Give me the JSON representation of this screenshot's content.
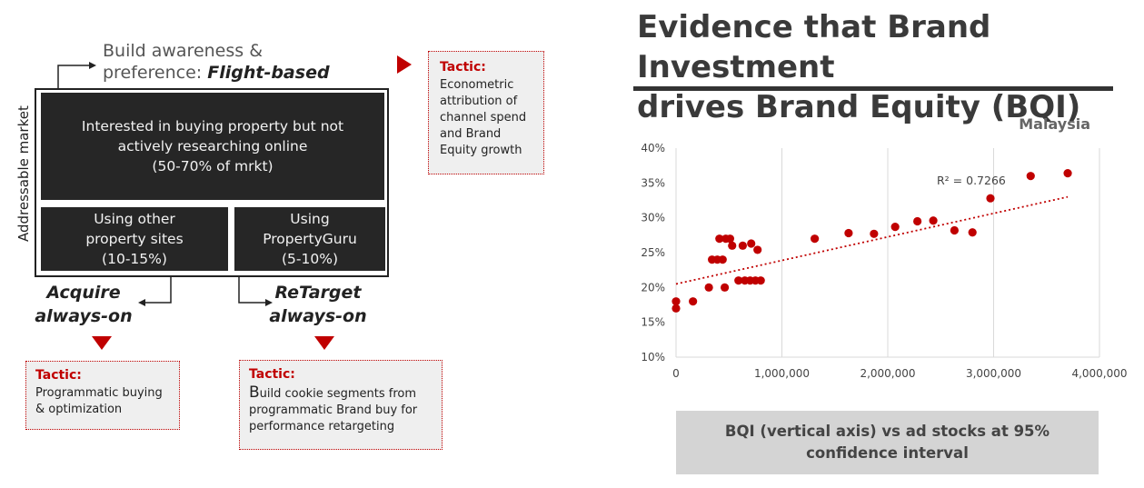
{
  "diagram": {
    "build_line1": "Build awareness &",
    "build_line2_prefix": "preference: ",
    "build_line2_bold": "Flight-based",
    "vertical_label": "Addressable market",
    "main_box": [
      "Interested in buying property but not",
      "actively researching online",
      "(50-70% of mrkt)"
    ],
    "other_box": [
      "Using other",
      "property sites",
      "(10-15%)"
    ],
    "pg_box": [
      "Using",
      "PropertyGuru",
      "(5-10%)"
    ],
    "acquire": [
      "Acquire",
      "always-on"
    ],
    "retarget": [
      "ReTarget",
      "always-on"
    ]
  },
  "tactics": {
    "top": {
      "title": "Tactic:",
      "lines": [
        "Econometric",
        "attribution of",
        "channel spend",
        "and Brand",
        "Equity growth"
      ]
    },
    "acquire": {
      "title": "Tactic:",
      "lines": [
        "Programmatic buying",
        "& optimization"
      ]
    },
    "retarget": {
      "title": "Tactic:",
      "first_letter": "B",
      "line1_rest": "uild cookie segments from",
      "lines": [
        "programmatic Brand buy for",
        "performance retargeting"
      ]
    }
  },
  "chart_title": [
    "Evidence that Brand Investment",
    "drives Brand Equity (BQI)"
  ],
  "caption": [
    "BQI (vertical axis) vs ad stocks at 95%",
    "confidence interval"
  ],
  "chart_data": {
    "type": "scatter",
    "title": "Malaysia",
    "xlabel": "",
    "ylabel": "",
    "xlim": [
      0,
      4000000
    ],
    "ylim": [
      10,
      40
    ],
    "x_ticks": [
      0,
      1000000,
      2000000,
      3000000,
      4000000
    ],
    "x_tick_labels": [
      "0",
      "1,000,000",
      "2,000,000",
      "3,000,000",
      "4,000,000"
    ],
    "y_ticks": [
      10,
      15,
      20,
      25,
      30,
      35,
      40
    ],
    "y_tick_labels": [
      "10%",
      "15%",
      "20%",
      "25%",
      "30%",
      "35%",
      "40%"
    ],
    "grid": "vertical",
    "annotation": "R² = 0.7266",
    "trendline": {
      "style": "dotted",
      "x": [
        0,
        3700000
      ],
      "y": [
        20.5,
        33.0
      ]
    },
    "marker_color": "#c00000",
    "points": [
      {
        "x": 0,
        "y": 17
      },
      {
        "x": 0,
        "y": 18
      },
      {
        "x": 160000,
        "y": 18
      },
      {
        "x": 310000,
        "y": 20
      },
      {
        "x": 340000,
        "y": 24
      },
      {
        "x": 390000,
        "y": 24
      },
      {
        "x": 440000,
        "y": 24
      },
      {
        "x": 410000,
        "y": 27
      },
      {
        "x": 470000,
        "y": 27
      },
      {
        "x": 510000,
        "y": 27
      },
      {
        "x": 530000,
        "y": 26
      },
      {
        "x": 460000,
        "y": 20
      },
      {
        "x": 590000,
        "y": 21
      },
      {
        "x": 630000,
        "y": 26
      },
      {
        "x": 650000,
        "y": 21
      },
      {
        "x": 700000,
        "y": 21
      },
      {
        "x": 710000,
        "y": 26.3
      },
      {
        "x": 750000,
        "y": 21
      },
      {
        "x": 770000,
        "y": 25.4
      },
      {
        "x": 800000,
        "y": 21
      },
      {
        "x": 1310000,
        "y": 27
      },
      {
        "x": 1630000,
        "y": 27.8
      },
      {
        "x": 1870000,
        "y": 27.7
      },
      {
        "x": 2070000,
        "y": 28.7
      },
      {
        "x": 2280000,
        "y": 29.5
      },
      {
        "x": 2430000,
        "y": 29.6
      },
      {
        "x": 2630000,
        "y": 28.2
      },
      {
        "x": 2800000,
        "y": 27.9
      },
      {
        "x": 2970000,
        "y": 32.8
      },
      {
        "x": 3350000,
        "y": 36
      },
      {
        "x": 3700000,
        "y": 36.4
      }
    ]
  }
}
